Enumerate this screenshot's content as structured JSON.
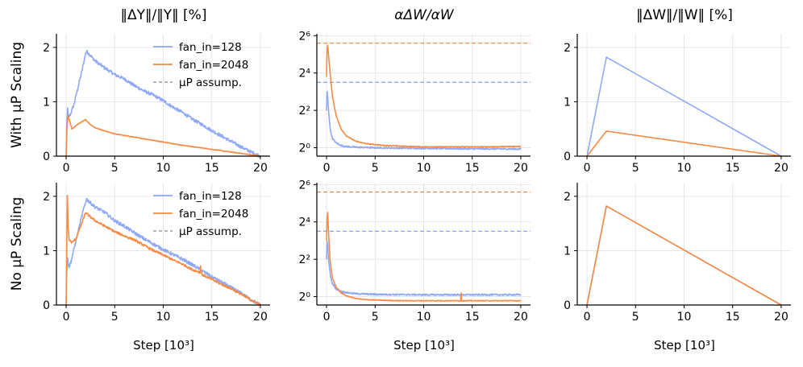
{
  "colors": {
    "blue": "#8fa9f5",
    "orange": "#f58b45",
    "dashed": "#888888"
  },
  "chart_data": {
    "type": "line",
    "grid_layout": "2 rows x 3 columns",
    "row_labels": [
      "With μP Scaling",
      "No μP Scaling"
    ],
    "column_titles": [
      "‖ΔY‖/‖Y‖ [%]",
      "αΔW/αW",
      "‖ΔW‖/‖W‖ [%]"
    ],
    "xlabel": "Step [10³]",
    "xlim": [
      -1,
      21
    ],
    "xticks": [
      0,
      5,
      10,
      15,
      20
    ],
    "legend": {
      "placement": "top-right of first column",
      "entries": [
        "fan_in=128",
        "fan_in=2048",
        "μP assump."
      ]
    },
    "series_names": [
      "fan_in=128",
      "fan_in=2048"
    ],
    "panels": [
      {
        "id": "r0c0",
        "row": 0,
        "col": 0,
        "yscale": "linear",
        "ylim": [
          0,
          2.25
        ],
        "yticks": [
          0,
          1,
          2
        ],
        "ytick_labels": [
          "0",
          "1",
          "2"
        ],
        "series": [
          {
            "name": "fan_in=128",
            "color": "blue",
            "noise": 0.03,
            "points": [
              [
                0,
                0
              ],
              [
                0.05,
                0.5
              ],
              [
                0.15,
                0.88
              ],
              [
                0.25,
                0.72
              ],
              [
                0.4,
                0.75
              ],
              [
                0.8,
                0.95
              ],
              [
                1.2,
                1.25
              ],
              [
                1.6,
                1.55
              ],
              [
                2.0,
                1.88
              ],
              [
                2.1,
                1.93
              ],
              [
                2.5,
                1.85
              ],
              [
                3,
                1.75
              ],
              [
                4,
                1.62
              ],
              [
                5,
                1.5
              ],
              [
                6,
                1.42
              ],
              [
                7,
                1.3
              ],
              [
                8,
                1.2
              ],
              [
                9,
                1.12
              ],
              [
                10,
                1.02
              ],
              [
                11,
                0.9
              ],
              [
                12,
                0.8
              ],
              [
                13,
                0.68
              ],
              [
                14,
                0.58
              ],
              [
                15,
                0.47
              ],
              [
                16,
                0.37
              ],
              [
                17,
                0.27
              ],
              [
                18,
                0.17
              ],
              [
                19,
                0.08
              ],
              [
                20,
                0
              ]
            ]
          },
          {
            "name": "fan_in=2048",
            "color": "orange",
            "noise": 0.006,
            "points": [
              [
                0,
                0
              ],
              [
                0.08,
                0.5
              ],
              [
                0.2,
                0.75
              ],
              [
                0.35,
                0.65
              ],
              [
                0.6,
                0.5
              ],
              [
                1.0,
                0.56
              ],
              [
                1.5,
                0.62
              ],
              [
                2.0,
                0.67
              ],
              [
                2.5,
                0.58
              ],
              [
                3,
                0.52
              ],
              [
                4,
                0.46
              ],
              [
                5,
                0.41
              ],
              [
                6,
                0.38
              ],
              [
                8,
                0.32
              ],
              [
                10,
                0.26
              ],
              [
                12,
                0.2
              ],
              [
                14,
                0.15
              ],
              [
                16,
                0.1
              ],
              [
                18,
                0.05
              ],
              [
                20,
                0
              ]
            ]
          }
        ]
      },
      {
        "id": "r0c1",
        "row": 0,
        "col": 1,
        "yscale": "log2",
        "ylim": [
          -0.45,
          6.1
        ],
        "yticks": [
          0,
          2,
          4,
          6
        ],
        "ytick_labels": [
          "2⁰",
          "2²",
          "2⁴",
          "2⁶"
        ],
        "hlines": [
          {
            "y": 5.6,
            "color": "orange"
          },
          {
            "y": 3.5,
            "color": "blue"
          }
        ],
        "series": [
          {
            "name": "fan_in=128",
            "color": "blue",
            "noise": 0.04,
            "points": [
              [
                0,
                2.0
              ],
              [
                0.05,
                3.0
              ],
              [
                0.12,
                2.7
              ],
              [
                0.2,
                2.0
              ],
              [
                0.4,
                0.9
              ],
              [
                0.6,
                0.5
              ],
              [
                1,
                0.25
              ],
              [
                1.5,
                0.12
              ],
              [
                2,
                0.07
              ],
              [
                3,
                0.03
              ],
              [
                5,
                0.0
              ],
              [
                10,
                -0.03
              ],
              [
                15,
                -0.06
              ],
              [
                20,
                -0.07
              ]
            ]
          },
          {
            "name": "fan_in=2048",
            "color": "orange",
            "noise": 0.02,
            "points": [
              [
                0,
                3.8
              ],
              [
                0.05,
                5.3
              ],
              [
                0.12,
                5.5
              ],
              [
                0.2,
                5.0
              ],
              [
                0.4,
                3.8
              ],
              [
                0.6,
                2.8
              ],
              [
                0.8,
                2.2
              ],
              [
                1,
                1.7
              ],
              [
                1.5,
                1.0
              ],
              [
                2,
                0.65
              ],
              [
                3,
                0.35
              ],
              [
                4,
                0.22
              ],
              [
                6,
                0.12
              ],
              [
                8,
                0.08
              ],
              [
                10,
                0.05
              ],
              [
                14,
                0.05
              ],
              [
                17,
                0.05
              ],
              [
                20,
                0.08
              ]
            ]
          }
        ]
      },
      {
        "id": "r0c2",
        "row": 0,
        "col": 2,
        "yscale": "linear",
        "ylim": [
          0,
          2.25
        ],
        "yticks": [
          0,
          1,
          2
        ],
        "ytick_labels": [
          "0",
          "1",
          "2"
        ],
        "series": [
          {
            "name": "fan_in=128",
            "color": "blue",
            "noise": 0,
            "points": [
              [
                0,
                0
              ],
              [
                2,
                1.82
              ],
              [
                20,
                0
              ]
            ]
          },
          {
            "name": "fan_in=2048",
            "color": "orange",
            "noise": 0,
            "points": [
              [
                0,
                0
              ],
              [
                2,
                0.46
              ],
              [
                20,
                0
              ]
            ]
          }
        ]
      },
      {
        "id": "r1c0",
        "row": 1,
        "col": 0,
        "yscale": "linear",
        "ylim": [
          0,
          2.25
        ],
        "yticks": [
          0,
          1,
          2
        ],
        "ytick_labels": [
          "0",
          "1",
          "2"
        ],
        "series": [
          {
            "name": "fan_in=128",
            "color": "blue",
            "noise": 0.03,
            "points": [
              [
                0,
                0
              ],
              [
                0.05,
                0.6
              ],
              [
                0.15,
                0.85
              ],
              [
                0.3,
                0.7
              ],
              [
                0.5,
                0.8
              ],
              [
                0.9,
                1.1
              ],
              [
                1.3,
                1.4
              ],
              [
                1.7,
                1.7
              ],
              [
                2.1,
                1.95
              ],
              [
                2.5,
                1.88
              ],
              [
                3,
                1.8
              ],
              [
                4,
                1.7
              ],
              [
                5,
                1.55
              ],
              [
                6,
                1.45
              ],
              [
                7,
                1.33
              ],
              [
                8,
                1.22
              ],
              [
                9,
                1.12
              ],
              [
                10,
                1.02
              ],
              [
                11,
                0.93
              ],
              [
                12,
                0.84
              ],
              [
                13,
                0.74
              ],
              [
                14,
                0.63
              ],
              [
                15,
                0.52
              ],
              [
                16,
                0.42
              ],
              [
                17,
                0.32
              ],
              [
                18,
                0.22
              ],
              [
                19,
                0.1
              ],
              [
                20,
                0
              ]
            ]
          },
          {
            "name": "fan_in=2048",
            "color": "orange",
            "noise": 0.02,
            "points": [
              [
                0,
                0
              ],
              [
                0.06,
                1.0
              ],
              [
                0.12,
                2.03
              ],
              [
                0.2,
                1.5
              ],
              [
                0.3,
                1.2
              ],
              [
                0.6,
                1.15
              ],
              [
                1,
                1.22
              ],
              [
                1.5,
                1.45
              ],
              [
                2.0,
                1.7
              ],
              [
                2.5,
                1.62
              ],
              [
                3,
                1.55
              ],
              [
                4,
                1.45
              ],
              [
                5,
                1.35
              ],
              [
                6,
                1.27
              ],
              [
                7,
                1.2
              ],
              [
                8,
                1.1
              ],
              [
                9,
                1.0
              ],
              [
                10,
                0.92
              ],
              [
                11,
                0.83
              ],
              [
                12,
                0.75
              ],
              [
                13,
                0.65
              ],
              [
                13.8,
                0.6
              ],
              [
                13.85,
                0.72
              ],
              [
                13.9,
                0.6
              ],
              [
                14,
                0.56
              ],
              [
                15,
                0.47
              ],
              [
                16,
                0.38
              ],
              [
                17,
                0.3
              ],
              [
                18,
                0.2
              ],
              [
                19,
                0.1
              ],
              [
                20,
                0
              ]
            ]
          }
        ]
      },
      {
        "id": "r1c1",
        "row": 1,
        "col": 1,
        "yscale": "log2",
        "ylim": [
          -0.45,
          6.1
        ],
        "yticks": [
          0,
          2,
          4,
          6
        ],
        "ytick_labels": [
          "2⁰",
          "2²",
          "2⁴",
          "2⁶"
        ],
        "hlines": [
          {
            "y": 5.6,
            "color": "orange"
          },
          {
            "y": 3.5,
            "color": "blue"
          }
        ],
        "series": [
          {
            "name": "fan_in=128",
            "color": "blue",
            "noise": 0.04,
            "points": [
              [
                0,
                2.0
              ],
              [
                0.05,
                3.0
              ],
              [
                0.12,
                2.7
              ],
              [
                0.2,
                2.0
              ],
              [
                0.4,
                1.1
              ],
              [
                0.6,
                0.7
              ],
              [
                1,
                0.4
              ],
              [
                1.5,
                0.28
              ],
              [
                2,
                0.22
              ],
              [
                3,
                0.16
              ],
              [
                5,
                0.12
              ],
              [
                10,
                0.1
              ],
              [
                15,
                0.1
              ],
              [
                20,
                0.1
              ]
            ]
          },
          {
            "name": "fan_in=2048",
            "color": "orange",
            "noise": 0.02,
            "points": [
              [
                0,
                3.0
              ],
              [
                0.05,
                4.2
              ],
              [
                0.12,
                4.5
              ],
              [
                0.2,
                3.5
              ],
              [
                0.35,
                2.0
              ],
              [
                0.6,
                1.0
              ],
              [
                1,
                0.5
              ],
              [
                1.5,
                0.2
              ],
              [
                2,
                0.05
              ],
              [
                3,
                -0.1
              ],
              [
                4,
                -0.16
              ],
              [
                6,
                -0.2
              ],
              [
                8,
                -0.22
              ],
              [
                13.8,
                -0.22
              ],
              [
                13.85,
                0.2
              ],
              [
                13.9,
                -0.22
              ],
              [
                16,
                -0.22
              ],
              [
                20,
                -0.22
              ]
            ]
          }
        ]
      },
      {
        "id": "r1c2",
        "row": 1,
        "col": 2,
        "yscale": "linear",
        "ylim": [
          0,
          2.25
        ],
        "yticks": [
          0,
          1,
          2
        ],
        "ytick_labels": [
          "0",
          "1",
          "2"
        ],
        "series": [
          {
            "name": "fan_in=128",
            "color": "blue",
            "noise": 0,
            "points": [
              [
                0,
                0
              ],
              [
                2,
                1.82
              ],
              [
                20,
                0
              ]
            ]
          },
          {
            "name": "fan_in=2048",
            "color": "orange",
            "noise": 0,
            "points": [
              [
                0,
                0
              ],
              [
                2,
                1.82
              ],
              [
                20,
                0
              ]
            ]
          }
        ]
      }
    ]
  }
}
